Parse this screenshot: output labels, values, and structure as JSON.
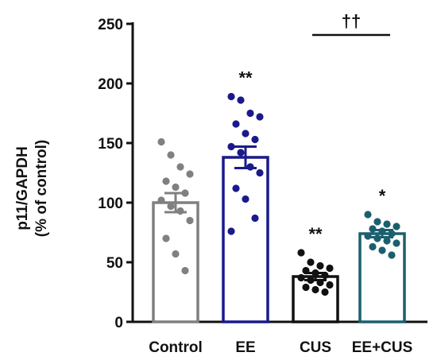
{
  "chart_data": {
    "type": "bar",
    "title": "",
    "xlabel": "",
    "ylabel_line1": "p11/GAPDH",
    "ylabel_line2": "(% of control)",
    "ylim": [
      0,
      250
    ],
    "yticks": [
      0,
      50,
      100,
      150,
      200,
      250
    ],
    "grid": false,
    "legend": "none",
    "categories": [
      "Control",
      "EE",
      "CUS",
      "EE+CUS"
    ],
    "values": [
      100,
      138,
      38,
      74
    ],
    "sem": [
      8,
      9,
      3,
      3
    ],
    "colors": [
      "#808080",
      "#1a1a8c",
      "#111111",
      "#1b5f6e"
    ],
    "significance": [
      "",
      "**",
      "**",
      "*"
    ],
    "comparison": {
      "from": "CUS",
      "to": "EE+CUS",
      "label": "††"
    },
    "points": [
      [
        151,
        140,
        130,
        124,
        118,
        113,
        108,
        102,
        97,
        93,
        85,
        70,
        57,
        43
      ],
      [
        189,
        186,
        175,
        172,
        166,
        158,
        153,
        147,
        142,
        130,
        125,
        112,
        103,
        87,
        76
      ],
      [
        58,
        50,
        47,
        45,
        43,
        41,
        39,
        37,
        35,
        33,
        31,
        29,
        27,
        25
      ],
      [
        90,
        84,
        82,
        80,
        78,
        76,
        74,
        72,
        70,
        68,
        66,
        63,
        60,
        56
      ]
    ]
  }
}
